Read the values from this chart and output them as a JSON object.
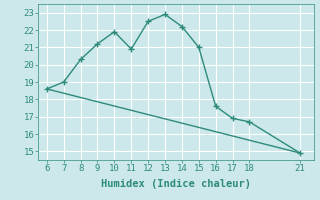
{
  "xlabel": "Humidex (Indice chaleur)",
  "curve1_x": [
    6,
    7,
    8,
    9,
    10,
    11,
    12,
    13,
    14,
    15,
    16,
    17,
    18,
    21
  ],
  "curve1_y": [
    18.6,
    19.0,
    20.3,
    21.2,
    21.9,
    20.9,
    22.5,
    22.9,
    22.2,
    21.0,
    17.6,
    16.9,
    16.7,
    14.9
  ],
  "curve2_x": [
    6,
    21
  ],
  "curve2_y": [
    18.6,
    14.9
  ],
  "line_color": "#2e8b7a",
  "bg_color": "#cce8ea",
  "grid_color": "#b0d4d8",
  "xlim": [
    5.5,
    21.8
  ],
  "ylim": [
    14.5,
    23.5
  ],
  "xticks": [
    6,
    7,
    8,
    9,
    10,
    11,
    12,
    13,
    14,
    15,
    16,
    17,
    18,
    21
  ],
  "yticks": [
    15,
    16,
    17,
    18,
    19,
    20,
    21,
    22,
    23
  ],
  "xlabel_fontsize": 7.5,
  "tick_fontsize": 6.5
}
